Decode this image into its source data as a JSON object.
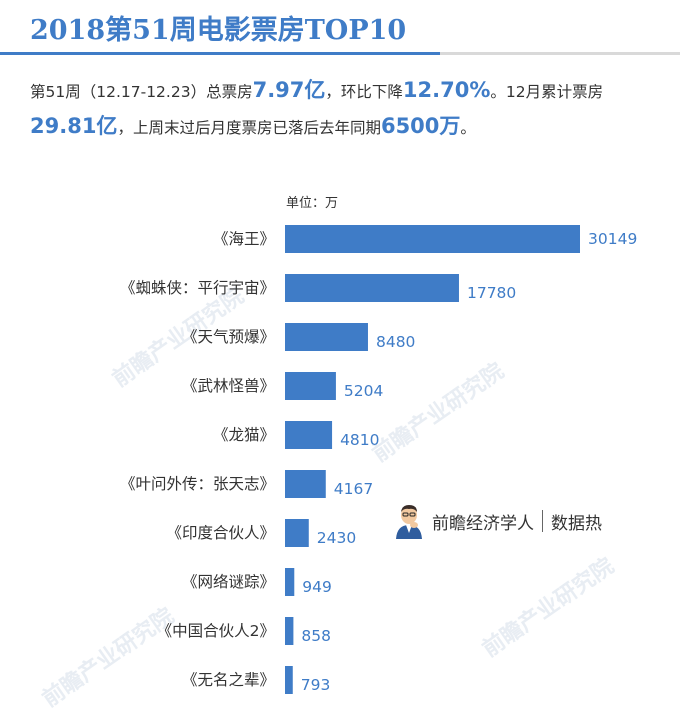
{
  "title": "2018第51周电影票房TOP10",
  "summary": {
    "part1": "第51周（12.17-12.23）总票房",
    "total_box_office": "7.97亿",
    "part2": "，环比下降",
    "weekly_change": "12.70%",
    "part3": "。12月累计票房",
    "december_box_office": "29.81亿",
    "part4": "，上周末过后月度票房已落后去年同期",
    "gap_vs_last_year": "6500万",
    "part5": "。"
  },
  "unit_label": "单位：万",
  "brand": {
    "name": "前瞻经济学人",
    "section": "数据热"
  },
  "watermark": "前瞻产业研究院",
  "colors": {
    "accent": "#3f7cc7",
    "bar": "#3f7cc7",
    "text": "#333333",
    "rule": "#d9d9d9"
  },
  "chart_data": {
    "type": "bar",
    "orientation": "horizontal",
    "title": "2018第51周电影票房TOP10",
    "unit": "万",
    "categories": [
      "《海王》",
      "《蜘蛛侠：平行宇宙》",
      "《天气预爆》",
      "《武林怪兽》",
      "《龙猫》",
      "《叶问外传：张天志》",
      "《印度合伙人》",
      "《网络谜踪》",
      "《中国合伙人2》",
      "《无名之辈》"
    ],
    "values": [
      30149,
      17780,
      8480,
      5204,
      4810,
      4167,
      2430,
      949,
      858,
      793
    ],
    "value_labels": [
      "30149",
      "17780",
      "8480",
      "5204",
      "4810",
      "4167",
      "2430",
      "949",
      "858",
      "793"
    ],
    "xlim": [
      0,
      30149
    ],
    "grid": false,
    "legend": "none"
  }
}
